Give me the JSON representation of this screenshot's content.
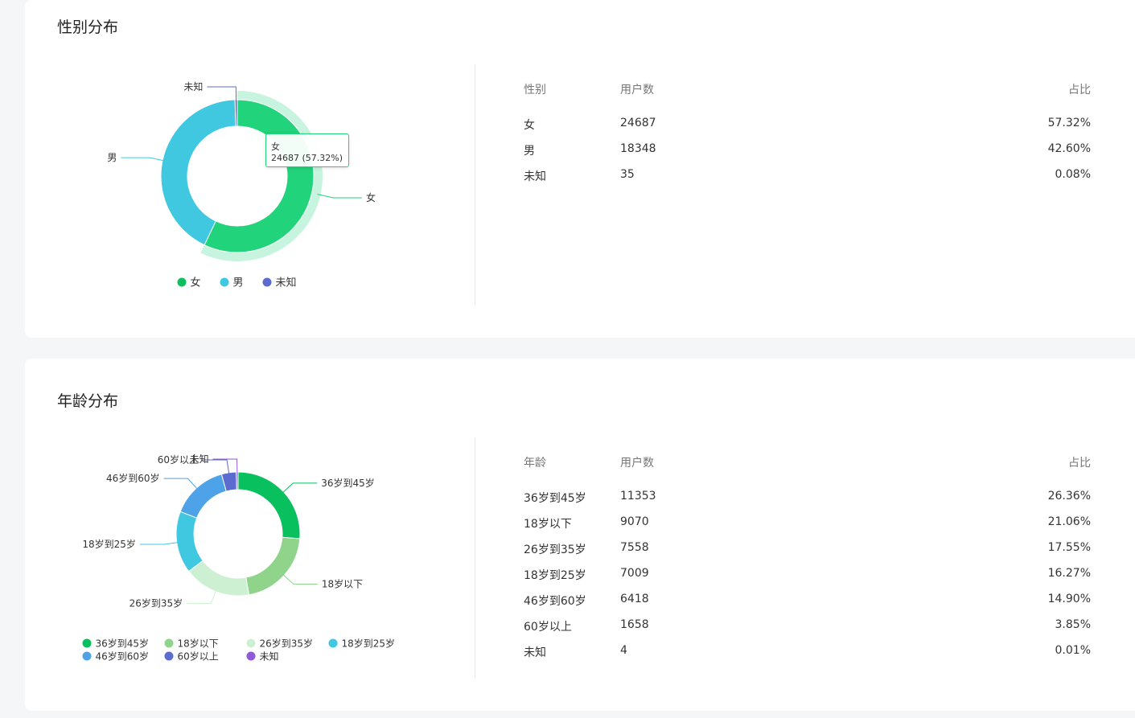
{
  "gender_section": {
    "title": "性别分布",
    "table_headers": [
      "性别",
      "用户数",
      "占比"
    ],
    "rows": [
      {
        "label": "女",
        "count": "24687",
        "percent": "57.32%"
      },
      {
        "label": "男",
        "count": "18348",
        "percent": "42.60%"
      },
      {
        "label": "未知",
        "count": "35",
        "percent": "0.08%"
      }
    ],
    "tooltip": {
      "name": "女",
      "value_text": "24687 (57.32%)"
    }
  },
  "age_section": {
    "title": "年龄分布",
    "table_headers": [
      "年龄",
      "用户数",
      "占比"
    ],
    "rows": [
      {
        "label": "36岁到45岁",
        "count": "11353",
        "percent": "26.36%"
      },
      {
        "label": "18岁以下",
        "count": "9070",
        "percent": "21.06%"
      },
      {
        "label": "26岁到35岁",
        "count": "7558",
        "percent": "17.55%"
      },
      {
        "label": "18岁到25岁",
        "count": "7009",
        "percent": "16.27%"
      },
      {
        "label": "46岁到60岁",
        "count": "6418",
        "percent": "14.90%"
      },
      {
        "label": "60岁以上",
        "count": "1658",
        "percent": "3.85%"
      },
      {
        "label": "未知",
        "count": "4",
        "percent": "0.01%"
      }
    ]
  },
  "chart_data": [
    {
      "type": "pie",
      "title": "性别分布",
      "donut": true,
      "categories": [
        "女",
        "男",
        "未知"
      ],
      "values": [
        24687,
        18348,
        35
      ],
      "colors": [
        "#21d37a",
        "#40c8e0",
        "#5b6bd0"
      ],
      "highlighted": "女",
      "legend_position": "bottom",
      "legend_colors": [
        "#0fbf5f",
        "#40c8e0",
        "#5b6bd0"
      ]
    },
    {
      "type": "pie",
      "title": "年龄分布",
      "donut": true,
      "categories": [
        "36岁到45岁",
        "18岁以下",
        "26岁到35岁",
        "18岁到25岁",
        "46岁到60岁",
        "60岁以上",
        "未知"
      ],
      "values": [
        11353,
        9070,
        7558,
        7009,
        6418,
        1658,
        4
      ],
      "colors": [
        "#08c05e",
        "#8fd48a",
        "#cdf0d2",
        "#40c8e0",
        "#4ea3e8",
        "#5b6bd0",
        "#8e5ad8"
      ],
      "legend_position": "bottom"
    }
  ]
}
